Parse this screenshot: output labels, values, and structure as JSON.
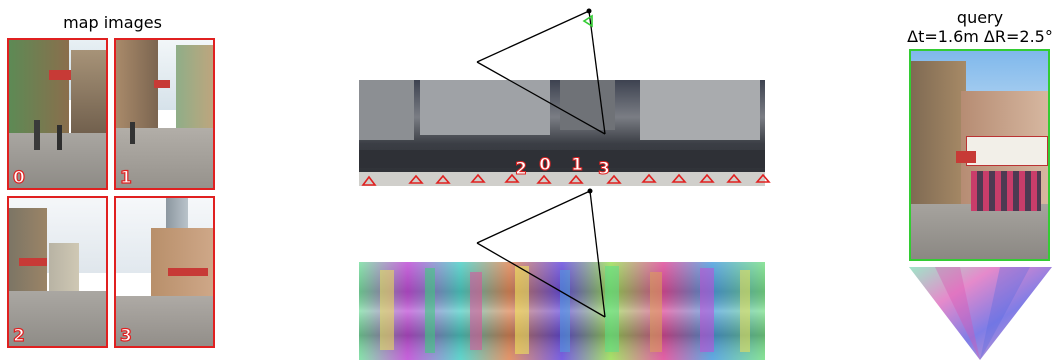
{
  "map_panel": {
    "title": "map images",
    "thumbnails": [
      {
        "label": "0"
      },
      {
        "label": "1"
      },
      {
        "label": "2"
      },
      {
        "label": "3"
      }
    ]
  },
  "aerial": {
    "view_labels": [
      "2",
      "0",
      "1",
      "3"
    ]
  },
  "query": {
    "title_line1": "query",
    "title_line2": "Δt=1.6m ΔR=2.5°"
  },
  "colors": {
    "map_border": "#e02020",
    "query_border": "#33cc33",
    "fov_line": "#000000"
  }
}
